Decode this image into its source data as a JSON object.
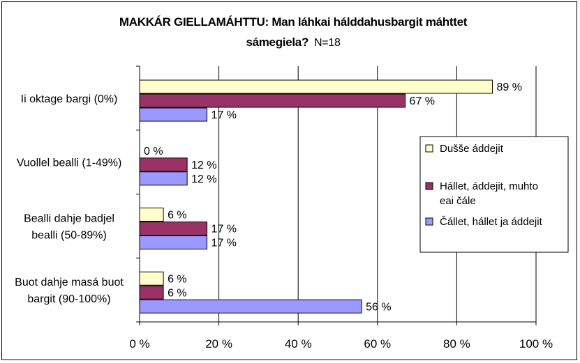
{
  "chart_data": {
    "type": "bar",
    "orientation": "horizontal",
    "title": "MAKKÁR GIELLAMÁHTTU: Man láhkai hálddahusbargit máhttet sámegiela?",
    "title_line1": "MAKKÁR GIELLAMÁHTTU: Man láhkai hálddahusbargit máhttet",
    "title_line2": "sámegiela?",
    "subtitle": "N=18",
    "categories": [
      [
        "Ii oktage bargi (0%)"
      ],
      [
        "Vuollel bealli (1-49%)"
      ],
      [
        "Bealli dahje badjel",
        "bealli (50-89%)"
      ],
      [
        "Buot dahje masá buot",
        "bargit (90-100%)"
      ]
    ],
    "series": [
      {
        "name": "Dušše áddejit",
        "values": [
          89,
          0,
          6,
          6
        ],
        "color": "#FFFFCC"
      },
      {
        "name": "Hállet, áddejit, muhto eai čále",
        "legend_lines": [
          "Hállet, áddejit, muhto",
          "eai čále"
        ],
        "values": [
          67,
          12,
          17,
          6
        ],
        "color": "#993366"
      },
      {
        "name": "Čállet, hállet ja áddejit",
        "values": [
          17,
          12,
          17,
          56
        ],
        "color": "#9999FF"
      }
    ],
    "value_suffix": " %",
    "xlim": [
      0,
      100
    ],
    "xticks": [
      "0 %",
      "20 %",
      "40 %",
      "60 %",
      "80 %",
      "100 %"
    ],
    "grid": true,
    "legend_position": "right"
  }
}
